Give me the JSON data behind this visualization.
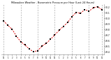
{
  "title": "Milwaukee Weather - Barometric Pressure per Hour (Last 24 Hours)",
  "bg_color": "#ffffff",
  "plot_bg_color": "#ffffff",
  "text_color": "#000000",
  "grid_color": "#aaaaaa",
  "line_color": "#dd0000",
  "dot_color": "#000000",
  "ylim": [
    29.35,
    30.25
  ],
  "ytick_labels": [
    "29.4",
    "29.5",
    "29.6",
    "29.7",
    "29.8",
    "29.9",
    "30.0",
    "30.1",
    "30.2"
  ],
  "ytick_vals": [
    29.4,
    29.5,
    29.6,
    29.7,
    29.8,
    29.9,
    30.0,
    30.1,
    30.2
  ],
  "hours": [
    0,
    1,
    2,
    3,
    4,
    5,
    6,
    7,
    8,
    9,
    10,
    11,
    12,
    13,
    14,
    15,
    16,
    17,
    18,
    19,
    20,
    21,
    22,
    23
  ],
  "pressure": [
    29.95,
    29.87,
    29.8,
    29.68,
    29.58,
    29.52,
    29.45,
    29.4,
    29.42,
    29.5,
    29.55,
    29.62,
    29.7,
    29.78,
    29.85,
    29.92,
    30.02,
    30.1,
    30.08,
    30.15,
    30.12,
    30.18,
    30.2,
    30.15
  ],
  "vgrid_positions": [
    0,
    4,
    8,
    12,
    16,
    20,
    23
  ],
  "xtick_positions": [
    0,
    1,
    2,
    3,
    4,
    5,
    6,
    7,
    8,
    9,
    10,
    11,
    12,
    13,
    14,
    15,
    16,
    17,
    18,
    19,
    20,
    21,
    22,
    23
  ],
  "xtick_labels": [
    "12",
    "1",
    "2",
    "3",
    "4",
    "5",
    "6",
    "7",
    "8",
    "9",
    "10",
    "11",
    "12",
    "1",
    "2",
    "3",
    "4",
    "5",
    "6",
    "7",
    "8",
    "9",
    "10",
    "11"
  ]
}
